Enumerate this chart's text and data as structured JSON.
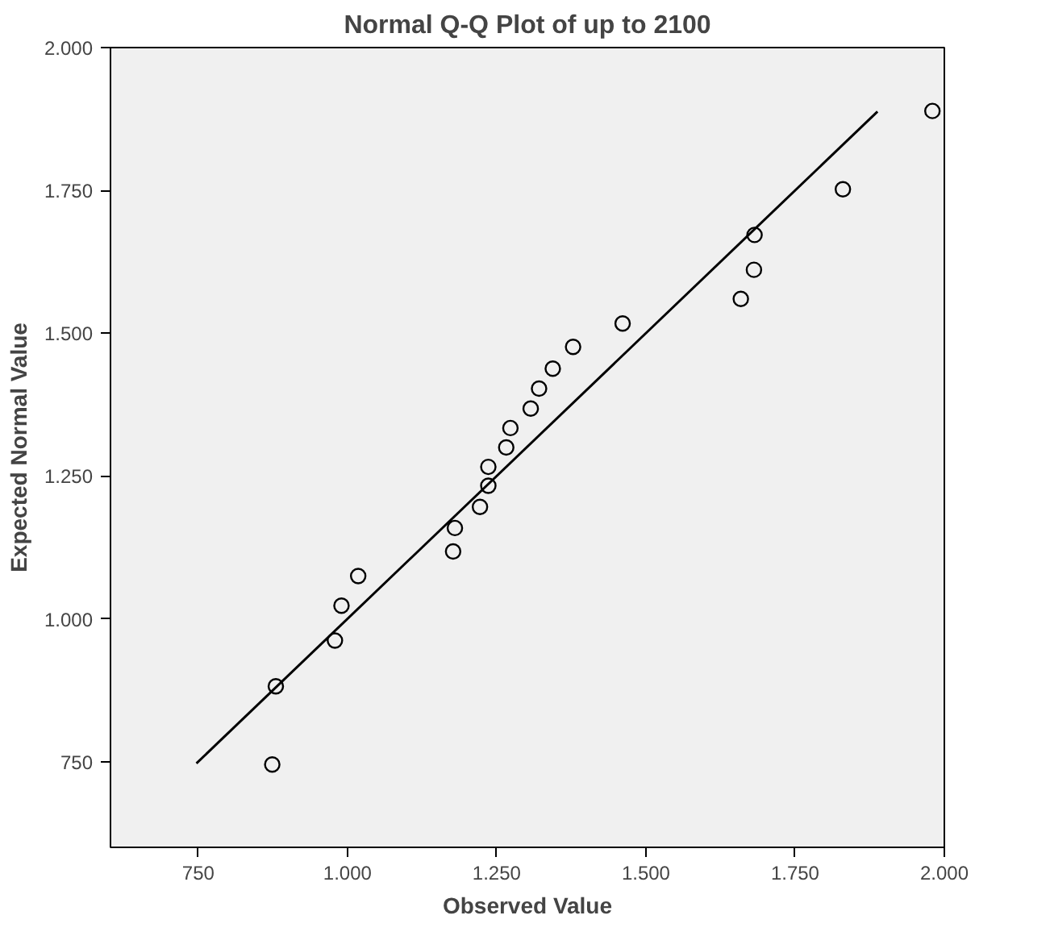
{
  "chart_data": {
    "type": "scatter",
    "title": "Normal Q-Q Plot of up to 2100",
    "xlabel": "Observed Value",
    "ylabel": "Expected Normal Value",
    "xlim": [
      603,
      2000
    ],
    "ylim": [
      600,
      2000
    ],
    "xticks": [
      750,
      {
        "value": 1000,
        "label": "1.000"
      },
      {
        "value": 1250,
        "label": "1.250"
      },
      {
        "value": 1500,
        "label": "1.500"
      },
      {
        "value": 1750,
        "label": "1.750"
      },
      {
        "value": 2000,
        "label": "2.000"
      }
    ],
    "yticks": [
      750,
      {
        "value": 1000,
        "label": "1.000"
      },
      {
        "value": 1250,
        "label": "1.250"
      },
      {
        "value": 1500,
        "label": "1.500"
      },
      {
        "value": 1750,
        "label": "1.750"
      },
      {
        "value": 2000,
        "label": "2.000"
      }
    ],
    "grid": false,
    "series": [
      {
        "marker": "circle",
        "color": "#000000",
        "x": [
          874,
          880,
          979,
          990,
          1018,
          1177,
          1180,
          1222,
          1236,
          1236,
          1266,
          1273,
          1307,
          1321,
          1344,
          1378,
          1461,
          1659,
          1681,
          1682,
          1830,
          1980
        ],
        "values": [
          745,
          882,
          962,
          1023,
          1075,
          1118,
          1159,
          1196,
          1233,
          1266,
          1300,
          1334,
          1368,
          1403,
          1438,
          1476,
          1517,
          1560,
          1611,
          1672,
          1752,
          1889
        ]
      },
      {
        "type": "line",
        "color": "#000000",
        "line_style": "solid",
        "x": [
          747,
          1888
        ],
        "values": [
          747,
          1888
        ]
      }
    ]
  }
}
